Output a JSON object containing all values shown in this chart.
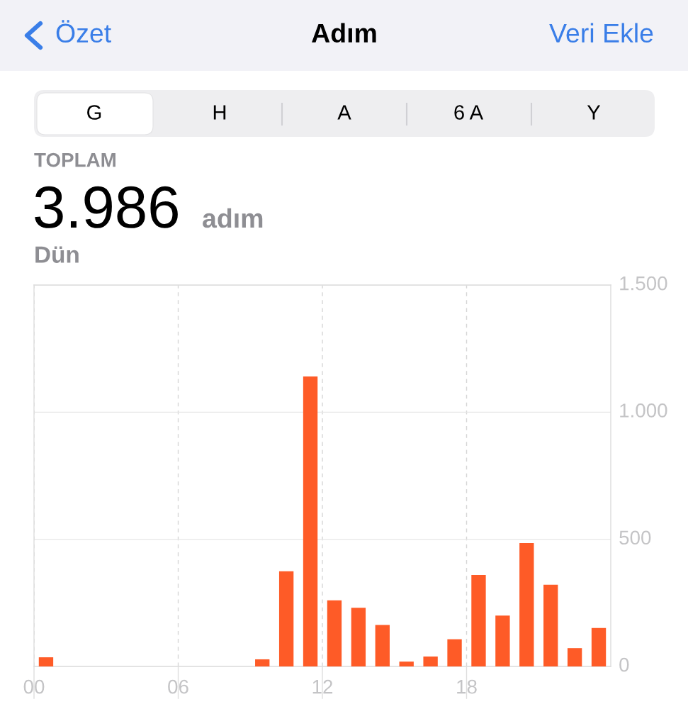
{
  "chart_data": {
    "type": "bar",
    "title": "Adım",
    "annotations": [
      "Özet",
      "Veri Ekle",
      "G",
      "H",
      "A",
      "6 A",
      "Y",
      "TOPLAM",
      "3.986",
      "adım",
      "Dün"
    ],
    "x": [
      0.5,
      9.5,
      10.5,
      11.5,
      12.5,
      13.5,
      14.5,
      15.5,
      16.5,
      17.5,
      18.5,
      19.5,
      20.5,
      21.5,
      22.5,
      23.5
    ],
    "values": [
      36,
      28,
      374,
      1140,
      260,
      231,
      163,
      19,
      39,
      107,
      360,
      200,
      485,
      321,
      72,
      151
    ],
    "color": "#fe5b27",
    "xlim": [
      0,
      24
    ],
    "xticks": [
      {
        "value": 0,
        "label": "00"
      },
      {
        "value": 6,
        "label": "06"
      },
      {
        "value": 12,
        "label": "12"
      },
      {
        "value": 18,
        "label": "18"
      }
    ],
    "ylim": [
      0,
      1500
    ],
    "yticks": [
      {
        "value": 0,
        "label": "0"
      },
      {
        "value": 500,
        "label": "500"
      },
      {
        "value": 1000,
        "label": "1.000"
      },
      {
        "value": 1500,
        "label": "1.500"
      }
    ],
    "grid": true
  }
}
